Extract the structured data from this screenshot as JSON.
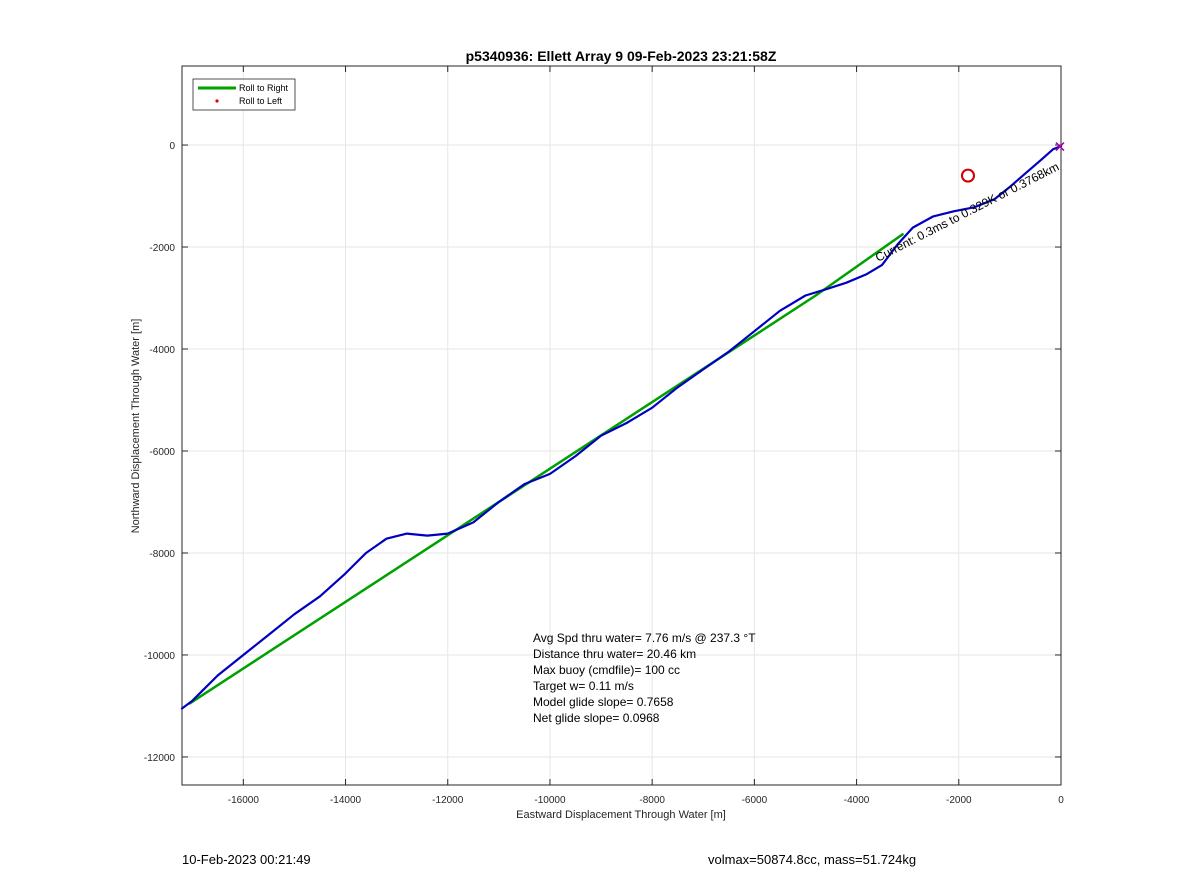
{
  "chart_data": {
    "type": "line",
    "title": "p5340936: Ellett Array 9 09-Feb-2023 23:21:58Z",
    "xlabel": "Eastward Displacement Through Water [m]",
    "ylabel": "Northward Displacement Through Water [m]",
    "xlim": [
      -17200,
      0
    ],
    "ylim": [
      -12550,
      1550
    ],
    "grid": true,
    "x_ticks": [
      -16000,
      -14000,
      -12000,
      -10000,
      -8000,
      -6000,
      -4000,
      -2000,
      0
    ],
    "y_ticks": [
      -12000,
      -10000,
      -8000,
      -6000,
      -4000,
      -2000,
      0
    ],
    "legend": {
      "location": "top-left",
      "entries": [
        {
          "label": "Roll to Right",
          "color": "#00a000",
          "marker": "line"
        },
        {
          "label": "Roll to Left",
          "color": "#e00000",
          "marker": "dot"
        }
      ]
    },
    "series": [
      {
        "name": "Roll to Right",
        "color": "#00a000",
        "points": [
          [
            -17050,
            -10950
          ],
          [
            -4800,
            -2950
          ],
          [
            -3100,
            -1750
          ]
        ]
      },
      {
        "color": "#0000c0",
        "points": [
          [
            -17200,
            -11050
          ],
          [
            -17000,
            -10900
          ],
          [
            -16800,
            -10700
          ],
          [
            -16500,
            -10400
          ],
          [
            -16000,
            -10000
          ],
          [
            -15500,
            -9600
          ],
          [
            -15000,
            -9200
          ],
          [
            -14500,
            -8850
          ],
          [
            -14000,
            -8400
          ],
          [
            -13600,
            -8000
          ],
          [
            -13200,
            -7720
          ],
          [
            -12800,
            -7620
          ],
          [
            -12400,
            -7660
          ],
          [
            -12000,
            -7620
          ],
          [
            -11500,
            -7400
          ],
          [
            -11000,
            -7000
          ],
          [
            -10500,
            -6650
          ],
          [
            -10000,
            -6450
          ],
          [
            -9500,
            -6100
          ],
          [
            -9000,
            -5700
          ],
          [
            -8500,
            -5450
          ],
          [
            -8000,
            -5150
          ],
          [
            -7500,
            -4750
          ],
          [
            -7000,
            -4400
          ],
          [
            -6500,
            -4050
          ],
          [
            -6000,
            -3650
          ],
          [
            -5500,
            -3250
          ],
          [
            -5000,
            -2950
          ],
          [
            -4600,
            -2830
          ],
          [
            -4200,
            -2700
          ],
          [
            -3800,
            -2530
          ],
          [
            -3500,
            -2350
          ],
          [
            -3200,
            -1950
          ],
          [
            -2900,
            -1620
          ],
          [
            -2500,
            -1400
          ],
          [
            -2100,
            -1300
          ],
          [
            -1700,
            -1220
          ],
          [
            -1300,
            -1060
          ],
          [
            -1000,
            -820
          ],
          [
            -700,
            -560
          ],
          [
            -400,
            -300
          ],
          [
            -150,
            -80
          ],
          [
            0,
            -20
          ]
        ]
      }
    ],
    "markers": [
      {
        "shape": "circle",
        "color": "#cc0000",
        "x": -1820,
        "y": -600
      },
      {
        "shape": "cross",
        "color": "#aa00aa",
        "x": -20,
        "y": -30
      }
    ],
    "annotations": {
      "track_label": "Current: 0.3ms to 0.329K or 0.3768km",
      "stats": [
        "Avg Spd thru water=  7.76 m/s @ 237.3 °T",
        "Distance thru water= 20.46 km",
        "Max buoy (cmdfile)= 100 cc",
        "Target w= 0.11 m/s",
        "Model glide slope= 0.7658",
        "Net glide slope= 0.0968"
      ]
    }
  },
  "footer": {
    "timestamp": "10-Feb-2023 00:21:49",
    "mass_info": "volmax=50874.8cc, mass=51.724kg"
  }
}
